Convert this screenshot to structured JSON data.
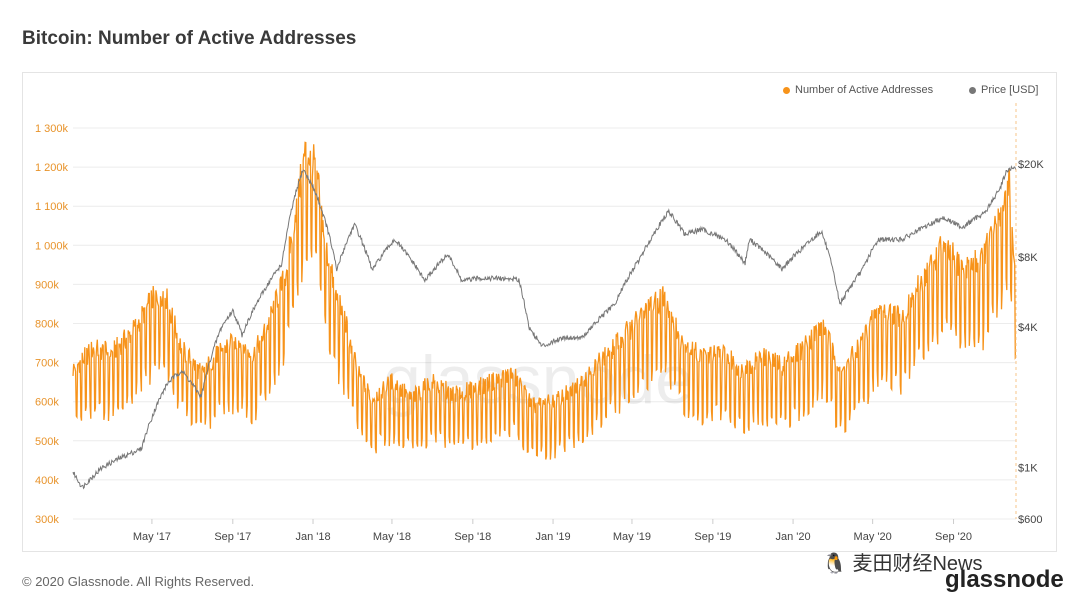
{
  "header": {
    "title": "Bitcoin: Number of Active Addresses"
  },
  "footer": {
    "copyright": "© 2020 Glassnode. All Rights Reserved.",
    "watermark": "🐧 麦田财经News",
    "brand": "glassnode"
  },
  "colors": {
    "addresses": "#f7931a",
    "price": "#777777",
    "grid": "#ececec",
    "left_axis": "#e8932a",
    "right_axis": "#444444"
  },
  "chart_data": {
    "type": "line",
    "title": "Bitcoin: Number of Active Addresses",
    "legend": "top-right",
    "background_watermark": "glassnode",
    "series": [
      {
        "name": "Number of Active Addresses",
        "axis": "left",
        "color": "#f7931a"
      },
      {
        "name": "Price [USD]",
        "axis": "right",
        "scale": "log",
        "color": "#777777"
      }
    ],
    "x_ticks": [
      "May '17",
      "Sep '17",
      "Jan '18",
      "May '18",
      "Sep '18",
      "Jan '19",
      "May '19",
      "Sep '19",
      "Jan '20",
      "May '20",
      "Sep '20"
    ],
    "y_left": {
      "ticks": [
        "300k",
        "400k",
        "500k",
        "600k",
        "700k",
        "800k",
        "900k",
        "1 000k",
        "1 100k",
        "1 200k",
        "1 300k"
      ],
      "range": [
        300000,
        1300000
      ]
    },
    "y_right": {
      "ticks": [
        "$600",
        "$1K",
        "$4K",
        "$8K",
        "$20K"
      ],
      "values": [
        600,
        1000,
        4000,
        8000,
        20000
      ],
      "range": [
        600,
        20000
      ]
    },
    "addresses_anchors": [
      [
        "2017-01-01",
        650000
      ],
      [
        "2017-02-01",
        700000
      ],
      [
        "2017-03-01",
        690000
      ],
      [
        "2017-04-01",
        740000
      ],
      [
        "2017-05-01",
        820000
      ],
      [
        "2017-05-20",
        840000
      ],
      [
        "2017-06-15",
        700000
      ],
      [
        "2017-07-15",
        640000
      ],
      [
        "2017-08-15",
        700000
      ],
      [
        "2017-09-10",
        720000
      ],
      [
        "2017-10-01",
        680000
      ],
      [
        "2017-10-25",
        760000
      ],
      [
        "2017-11-20",
        880000
      ],
      [
        "2017-12-10",
        1080000
      ],
      [
        "2017-12-20",
        1180000
      ],
      [
        "2018-01-05",
        1150000
      ],
      [
        "2018-01-20",
        950000
      ],
      [
        "2018-02-05",
        830000
      ],
      [
        "2018-02-20",
        760000
      ],
      [
        "2018-03-10",
        640000
      ],
      [
        "2018-04-01",
        580000
      ],
      [
        "2018-05-01",
        620000
      ],
      [
        "2018-06-01",
        580000
      ],
      [
        "2018-07-01",
        620000
      ],
      [
        "2018-08-01",
        590000
      ],
      [
        "2018-09-01",
        600000
      ],
      [
        "2018-10-01",
        620000
      ],
      [
        "2018-11-01",
        640000
      ],
      [
        "2018-12-01",
        560000
      ],
      [
        "2019-01-01",
        570000
      ],
      [
        "2019-02-01",
        600000
      ],
      [
        "2019-03-01",
        650000
      ],
      [
        "2019-04-01",
        700000
      ],
      [
        "2019-05-15",
        780000
      ],
      [
        "2019-06-20",
        830000
      ],
      [
        "2019-07-15",
        720000
      ],
      [
        "2019-08-15",
        680000
      ],
      [
        "2019-09-15",
        690000
      ],
      [
        "2019-10-15",
        650000
      ],
      [
        "2019-11-15",
        680000
      ],
      [
        "2019-12-15",
        660000
      ],
      [
        "2020-01-15",
        700000
      ],
      [
        "2020-02-15",
        760000
      ],
      [
        "2020-03-15",
        640000
      ],
      [
        "2020-04-15",
        720000
      ],
      [
        "2020-05-10",
        800000
      ],
      [
        "2020-06-15",
        780000
      ],
      [
        "2020-07-20",
        880000
      ],
      [
        "2020-08-15",
        950000
      ],
      [
        "2020-09-15",
        900000
      ],
      [
        "2020-10-15",
        920000
      ],
      [
        "2020-11-15",
        1050000
      ],
      [
        "2020-11-25",
        1120000
      ],
      [
        "2020-12-01",
        900000
      ]
    ],
    "price_anchors": [
      [
        "2017-01-01",
        950
      ],
      [
        "2017-01-15",
        820
      ],
      [
        "2017-02-15",
        1000
      ],
      [
        "2017-03-15",
        1100
      ],
      [
        "2017-04-15",
        1200
      ],
      [
        "2017-05-25",
        2300
      ],
      [
        "2017-06-15",
        2600
      ],
      [
        "2017-07-15",
        2000
      ],
      [
        "2017-08-15",
        4000
      ],
      [
        "2017-09-01",
        4700
      ],
      [
        "2017-09-15",
        3700
      ],
      [
        "2017-10-15",
        5500
      ],
      [
        "2017-11-15",
        7500
      ],
      [
        "2017-12-17",
        19000
      ],
      [
        "2018-01-05",
        15000
      ],
      [
        "2018-02-06",
        7000
      ],
      [
        "2018-03-05",
        11000
      ],
      [
        "2018-04-01",
        7000
      ],
      [
        "2018-05-05",
        9500
      ],
      [
        "2018-06-20",
        6300
      ],
      [
        "2018-07-25",
        8200
      ],
      [
        "2018-08-15",
        6300
      ],
      [
        "2018-09-15",
        6500
      ],
      [
        "2018-11-10",
        6400
      ],
      [
        "2018-11-25",
        4000
      ],
      [
        "2018-12-15",
        3300
      ],
      [
        "2019-01-15",
        3600
      ],
      [
        "2019-02-15",
        3600
      ],
      [
        "2019-04-05",
        5000
      ],
      [
        "2019-05-15",
        8000
      ],
      [
        "2019-06-26",
        12500
      ],
      [
        "2019-07-20",
        10000
      ],
      [
        "2019-08-15",
        10500
      ],
      [
        "2019-09-20",
        9500
      ],
      [
        "2019-10-20",
        7500
      ],
      [
        "2019-10-27",
        9500
      ],
      [
        "2019-12-15",
        7100
      ],
      [
        "2020-01-15",
        8700
      ],
      [
        "2020-02-13",
        10300
      ],
      [
        "2020-03-12",
        5000
      ],
      [
        "2020-04-15",
        7000
      ],
      [
        "2020-05-10",
        9500
      ],
      [
        "2020-06-15",
        9500
      ],
      [
        "2020-07-27",
        11000
      ],
      [
        "2020-08-15",
        11800
      ],
      [
        "2020-09-15",
        10700
      ],
      [
        "2020-10-20",
        12500
      ],
      [
        "2020-11-10",
        15500
      ],
      [
        "2020-11-20",
        18500
      ],
      [
        "2020-11-30",
        19200
      ],
      [
        "2020-12-05",
        19000
      ]
    ]
  }
}
